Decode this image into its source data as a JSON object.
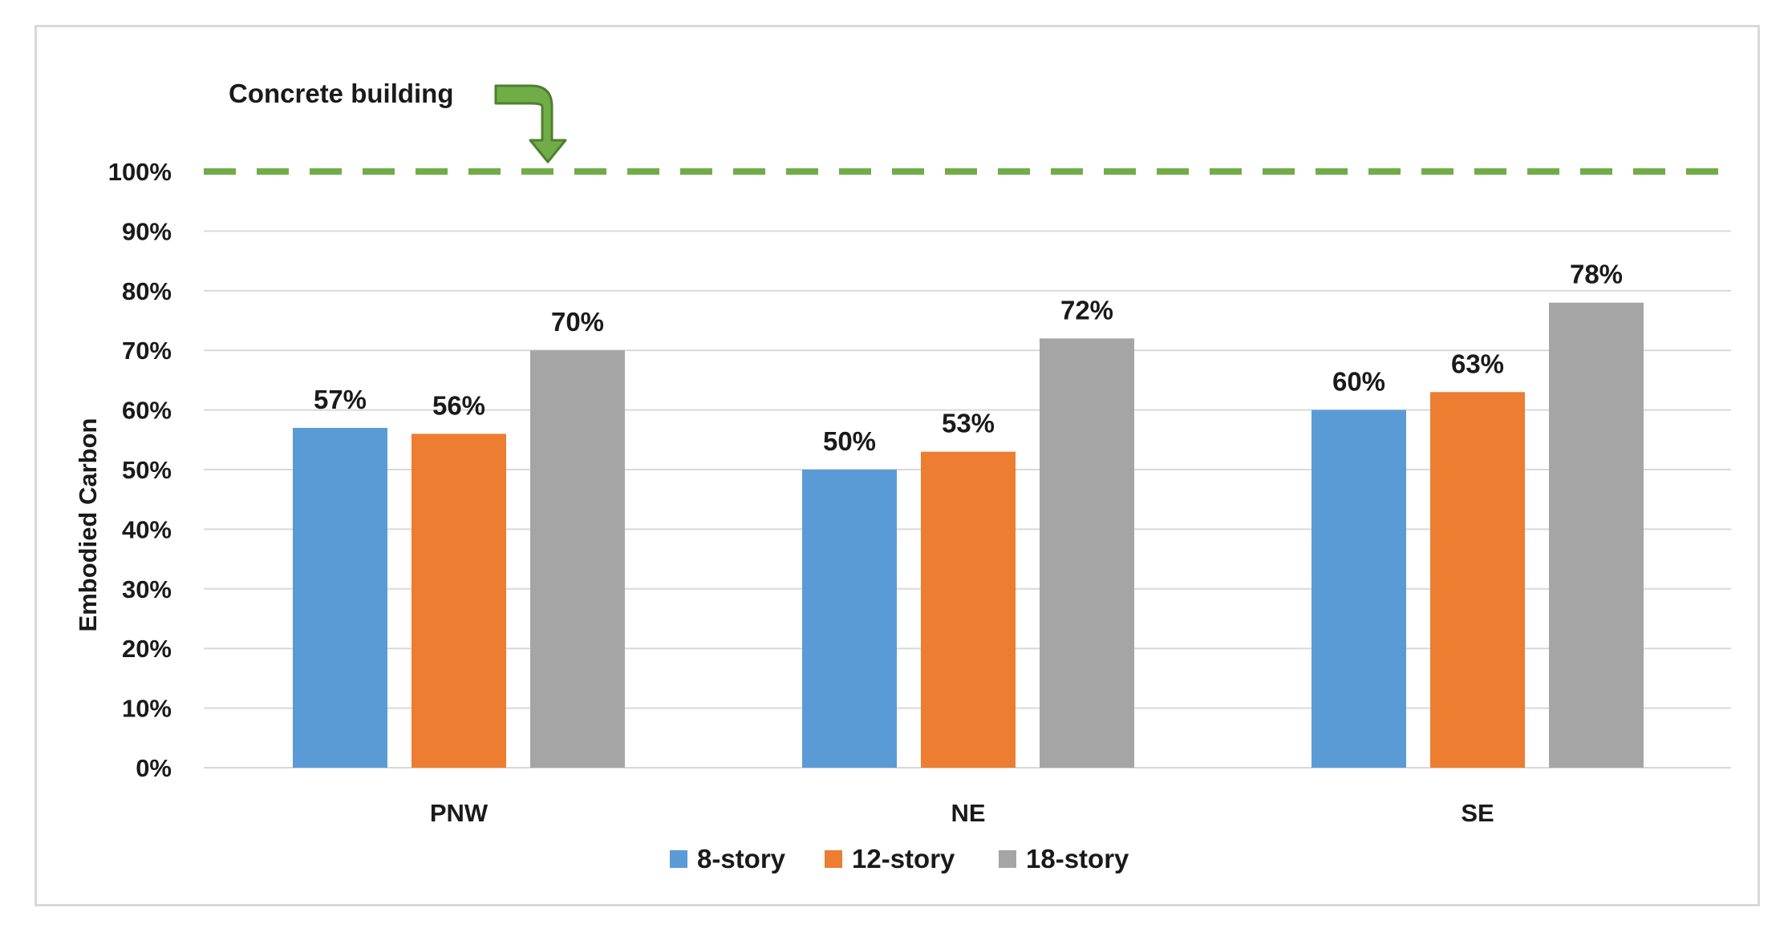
{
  "chart_data": {
    "type": "bar",
    "title": "",
    "xlabel": "",
    "ylabel": "Embodied Carbon",
    "ylim": [
      0,
      100
    ],
    "yticks": [
      0,
      10,
      20,
      30,
      40,
      50,
      60,
      70,
      80,
      90,
      100
    ],
    "ytick_suffix": "%",
    "grid": true,
    "legend": "bottom",
    "categories": [
      "PNW",
      "NE",
      "SE"
    ],
    "series": [
      {
        "name": "8-story",
        "color": "#5b9bd5",
        "values": [
          57,
          50,
          60
        ],
        "labels": [
          "57%",
          "50%",
          "60%"
        ]
      },
      {
        "name": "12-story",
        "color": "#ed7d31",
        "values": [
          56,
          53,
          63
        ],
        "labels": [
          "56%",
          "53%",
          "63%"
        ]
      },
      {
        "name": "18-story",
        "color": "#a5a5a5",
        "values": [
          70,
          72,
          78
        ],
        "labels": [
          "70%",
          "72%",
          "78%"
        ]
      }
    ],
    "reference_line": {
      "value": 100,
      "style": "dashed",
      "color": "#70ad47",
      "label": "Concrete building"
    }
  }
}
